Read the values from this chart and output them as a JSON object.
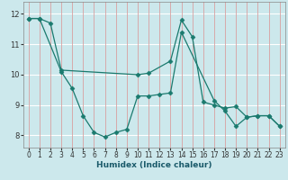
{
  "title": "",
  "xlabel": "Humidex (Indice chaleur)",
  "ylabel": "",
  "background_color": "#cce8ec",
  "grid_color_h": "#ffffff",
  "grid_color_v": "#d9a0a0",
  "line_color": "#1a7a6e",
  "xlim": [
    -0.5,
    23.5
  ],
  "ylim": [
    7.6,
    12.4
  ],
  "yticks": [
    8,
    9,
    10,
    11,
    12
  ],
  "xticks": [
    0,
    1,
    2,
    3,
    4,
    5,
    6,
    7,
    8,
    9,
    10,
    11,
    12,
    13,
    14,
    15,
    16,
    17,
    18,
    19,
    20,
    21,
    22,
    23
  ],
  "lines": [
    {
      "x": [
        0,
        1,
        2,
        3,
        10,
        11,
        13,
        14,
        15,
        16,
        17,
        18,
        19,
        20,
        21,
        22,
        23
      ],
      "y": [
        11.85,
        11.85,
        11.7,
        10.15,
        10.0,
        10.05,
        10.45,
        11.8,
        11.25,
        9.1,
        9.0,
        8.9,
        8.95,
        8.6,
        8.65,
        8.65,
        8.3
      ]
    },
    {
      "x": [
        0,
        1,
        3,
        4,
        5,
        6,
        7,
        8,
        9,
        10,
        11,
        12,
        13,
        14,
        17,
        18,
        19,
        20,
        21,
        22,
        23
      ],
      "y": [
        11.85,
        11.85,
        10.1,
        9.55,
        8.65,
        8.1,
        7.95,
        8.1,
        8.2,
        9.3,
        9.3,
        9.35,
        9.4,
        11.4,
        9.15,
        8.8,
        8.3,
        8.6,
        8.65,
        8.65,
        8.3
      ]
    }
  ],
  "marker": "D",
  "markersize": 2.5,
  "linewidth": 0.9,
  "label_fontsize": 6.5,
  "tick_fontsize": 5.5
}
